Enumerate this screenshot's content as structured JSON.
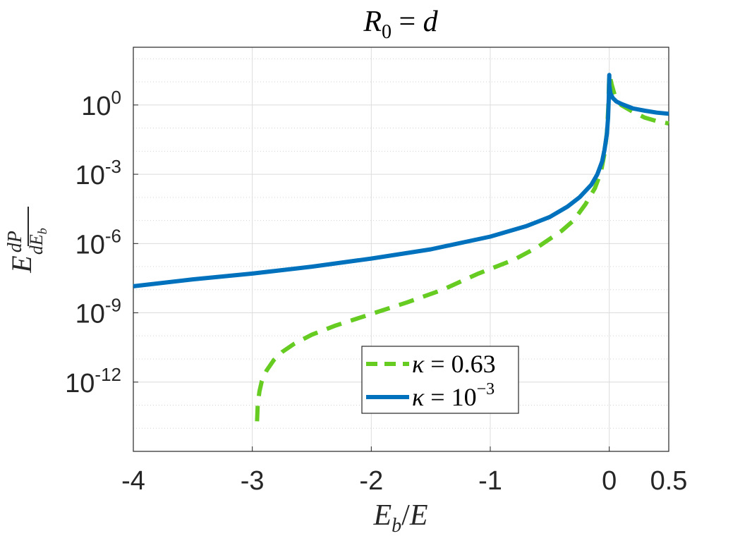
{
  "chart_data": {
    "type": "line",
    "title": "R₀ = d",
    "xlabel": "E_b/E",
    "ylabel": "E dP/dE_b",
    "xlim": [
      -4,
      0.5
    ],
    "ylim_log10": [
      -15,
      2.5
    ],
    "y_scale": "log",
    "grid": true,
    "minor_grid": true,
    "legend_position": "lower-center",
    "x_ticks": [
      {
        "value": -4,
        "label": "-4"
      },
      {
        "value": -3,
        "label": "-3"
      },
      {
        "value": -2,
        "label": "-2"
      },
      {
        "value": -1,
        "label": "-1"
      },
      {
        "value": 0,
        "label": "0"
      },
      {
        "value": 0.5,
        "label": "0.5"
      }
    ],
    "y_ticks": [
      {
        "value_log10": 0,
        "base": "10",
        "exp": "0"
      },
      {
        "value_log10": -3,
        "base": "10",
        "exp": "-3"
      },
      {
        "value_log10": -6,
        "base": "10",
        "exp": "-6"
      },
      {
        "value_log10": -9,
        "base": "10",
        "exp": "-9"
      },
      {
        "value_log10": -12,
        "base": "10",
        "exp": "-12"
      }
    ],
    "series": [
      {
        "name": "κ = 0.63",
        "color": "#66cc22",
        "style": "dashed",
        "points_log10": [
          [
            -2.96,
            -13.7
          ],
          [
            -2.955,
            -13.0
          ],
          [
            -2.94,
            -12.4
          ],
          [
            -2.92,
            -11.95
          ],
          [
            -2.88,
            -11.5
          ],
          [
            -2.82,
            -11.05
          ],
          [
            -2.75,
            -10.7
          ],
          [
            -2.65,
            -10.35
          ],
          [
            -2.5,
            -9.95
          ],
          [
            -2.3,
            -9.55
          ],
          [
            -2.0,
            -9.05
          ],
          [
            -1.7,
            -8.55
          ],
          [
            -1.4,
            -8.0
          ],
          [
            -1.1,
            -7.3
          ],
          [
            -0.8,
            -6.7
          ],
          [
            -0.6,
            -6.15
          ],
          [
            -0.4,
            -5.45
          ],
          [
            -0.3,
            -5.0
          ],
          [
            -0.2,
            -4.3
          ],
          [
            -0.12,
            -3.6
          ],
          [
            -0.07,
            -2.9
          ],
          [
            -0.04,
            -2.1
          ],
          [
            -0.02,
            -1.2
          ],
          [
            -0.008,
            -0.1
          ],
          [
            0.0,
            1.35
          ],
          [
            0.02,
            0.9
          ],
          [
            0.05,
            0.35
          ],
          [
            0.1,
            0.0
          ],
          [
            0.2,
            -0.3
          ],
          [
            0.3,
            -0.55
          ],
          [
            0.4,
            -0.7
          ],
          [
            0.5,
            -0.8
          ]
        ]
      },
      {
        "name": "κ = 10^-3",
        "color": "#0072bd",
        "style": "solid",
        "points_log10": [
          [
            -4.0,
            -7.85
          ],
          [
            -3.5,
            -7.55
          ],
          [
            -3.0,
            -7.3
          ],
          [
            -2.5,
            -7.0
          ],
          [
            -2.0,
            -6.65
          ],
          [
            -1.5,
            -6.25
          ],
          [
            -1.0,
            -5.7
          ],
          [
            -0.7,
            -5.25
          ],
          [
            -0.5,
            -4.85
          ],
          [
            -0.35,
            -4.4
          ],
          [
            -0.25,
            -4.0
          ],
          [
            -0.15,
            -3.45
          ],
          [
            -0.1,
            -3.0
          ],
          [
            -0.06,
            -2.45
          ],
          [
            -0.04,
            -1.95
          ],
          [
            -0.02,
            -1.25
          ],
          [
            -0.01,
            -0.55
          ],
          [
            -0.004,
            0.3
          ],
          [
            0.0,
            1.3
          ],
          [
            0.0,
            0.85
          ],
          [
            0.01,
            0.5
          ],
          [
            0.03,
            0.3
          ],
          [
            0.06,
            0.15
          ],
          [
            0.1,
            0.05
          ],
          [
            0.2,
            -0.15
          ],
          [
            0.3,
            -0.25
          ],
          [
            0.4,
            -0.33
          ],
          [
            0.5,
            -0.38
          ]
        ]
      }
    ]
  }
}
